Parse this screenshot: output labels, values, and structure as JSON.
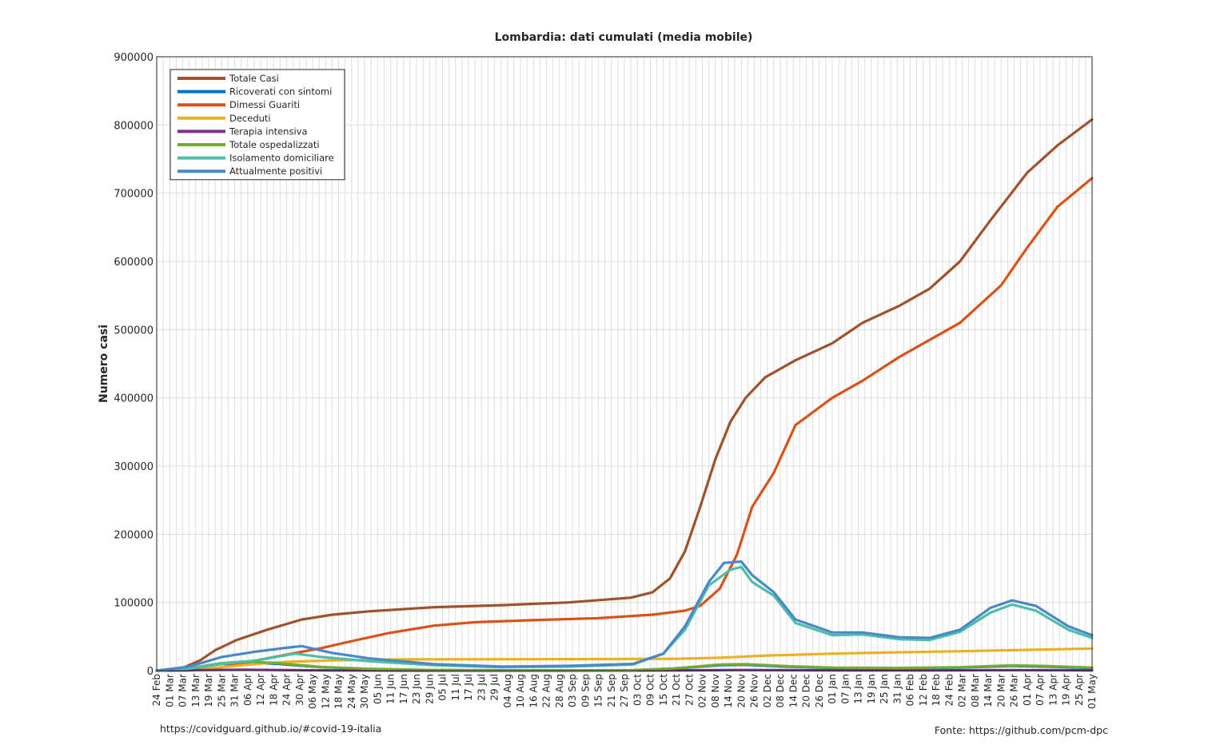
{
  "footer": {
    "left": "https://covidguard.github.io/#covid-19-italia",
    "right": "Fonte: https://github.com/pcm-dpc"
  },
  "chart_data": {
    "type": "line",
    "title": "Lombardia: dati cumulati (media mobile)",
    "xlabel": "",
    "ylabel": "Numero casi",
    "ylim": [
      0,
      900000
    ],
    "yticks": [
      "0",
      "100000",
      "200000",
      "300000",
      "400000",
      "500000",
      "600000",
      "700000",
      "800000",
      "900000"
    ],
    "x_range": [
      "2020-02-24",
      "2021-05-01"
    ],
    "x_tick_step_days": 3,
    "x_tick_label_step_days": 6,
    "x_tick_format": "DD Mon",
    "grid": true,
    "legend_position": "top-left",
    "series": [
      {
        "name": "Totale Casi",
        "color": "#a0522d",
        "points": [
          [
            "2020-02-24",
            0
          ],
          [
            "2020-03-07",
            4000
          ],
          [
            "2020-03-15",
            15000
          ],
          [
            "2020-03-22",
            30000
          ],
          [
            "2020-04-01",
            45000
          ],
          [
            "2020-04-15",
            60000
          ],
          [
            "2020-05-01",
            75000
          ],
          [
            "2020-05-15",
            82000
          ],
          [
            "2020-06-01",
            87000
          ],
          [
            "2020-07-01",
            93000
          ],
          [
            "2020-08-01",
            96000
          ],
          [
            "2020-09-01",
            100000
          ],
          [
            "2020-09-30",
            107000
          ],
          [
            "2020-10-10",
            115000
          ],
          [
            "2020-10-18",
            135000
          ],
          [
            "2020-10-25",
            175000
          ],
          [
            "2020-11-01",
            240000
          ],
          [
            "2020-11-08",
            310000
          ],
          [
            "2020-11-15",
            365000
          ],
          [
            "2020-11-22",
            400000
          ],
          [
            "2020-12-01",
            430000
          ],
          [
            "2020-12-15",
            455000
          ],
          [
            "2021-01-01",
            480000
          ],
          [
            "2021-01-15",
            510000
          ],
          [
            "2021-02-01",
            535000
          ],
          [
            "2021-02-15",
            560000
          ],
          [
            "2021-03-01",
            600000
          ],
          [
            "2021-03-15",
            660000
          ],
          [
            "2021-04-01",
            730000
          ],
          [
            "2021-04-15",
            770000
          ],
          [
            "2021-05-01",
            808000
          ]
        ]
      },
      {
        "name": "Ricoverati con sintomi",
        "color": "#0072bd",
        "points": [
          [
            "2020-02-24",
            0
          ],
          [
            "2020-03-10",
            3000
          ],
          [
            "2020-03-25",
            10000
          ],
          [
            "2020-04-05",
            12000
          ],
          [
            "2020-04-20",
            10000
          ],
          [
            "2020-05-10",
            5000
          ],
          [
            "2020-06-01",
            2500
          ],
          [
            "2020-07-01",
            800
          ],
          [
            "2020-08-20",
            300
          ],
          [
            "2020-10-01",
            600
          ],
          [
            "2020-10-20",
            3000
          ],
          [
            "2020-11-10",
            8000
          ],
          [
            "2020-11-22",
            8500
          ],
          [
            "2020-12-10",
            6000
          ],
          [
            "2021-01-01",
            4000
          ],
          [
            "2021-02-01",
            3500
          ],
          [
            "2021-03-01",
            4500
          ],
          [
            "2021-03-25",
            7000
          ],
          [
            "2021-04-10",
            6000
          ],
          [
            "2021-05-01",
            4000
          ]
        ]
      },
      {
        "name": "Dimessi Guariti",
        "color": "#d95319",
        "points": [
          [
            "2020-02-24",
            0
          ],
          [
            "2020-03-10",
            500
          ],
          [
            "2020-03-25",
            5000
          ],
          [
            "2020-04-10",
            15000
          ],
          [
            "2020-04-25",
            24000
          ],
          [
            "2020-05-10",
            33000
          ],
          [
            "2020-05-25",
            44000
          ],
          [
            "2020-06-10",
            55000
          ],
          [
            "2020-07-01",
            66000
          ],
          [
            "2020-07-20",
            71000
          ],
          [
            "2020-08-15",
            74000
          ],
          [
            "2020-09-15",
            77000
          ],
          [
            "2020-10-10",
            82000
          ],
          [
            "2020-10-25",
            88000
          ],
          [
            "2020-11-01",
            95000
          ],
          [
            "2020-11-10",
            120000
          ],
          [
            "2020-11-18",
            170000
          ],
          [
            "2020-11-25",
            240000
          ],
          [
            "2020-12-05",
            290000
          ],
          [
            "2020-12-15",
            360000
          ],
          [
            "2021-01-01",
            400000
          ],
          [
            "2021-01-15",
            425000
          ],
          [
            "2021-02-01",
            460000
          ],
          [
            "2021-03-01",
            510000
          ],
          [
            "2021-03-20",
            565000
          ],
          [
            "2021-04-01",
            620000
          ],
          [
            "2021-04-15",
            680000
          ],
          [
            "2021-05-01",
            722000
          ]
        ]
      },
      {
        "name": "Deceduti",
        "color": "#edb120",
        "points": [
          [
            "2020-02-24",
            0
          ],
          [
            "2020-03-10",
            800
          ],
          [
            "2020-03-25",
            5000
          ],
          [
            "2020-04-10",
            10000
          ],
          [
            "2020-04-25",
            13000
          ],
          [
            "2020-05-15",
            15000
          ],
          [
            "2020-06-15",
            16500
          ],
          [
            "2020-09-01",
            16900
          ],
          [
            "2020-10-20",
            17300
          ],
          [
            "2020-11-10",
            19000
          ],
          [
            "2020-12-01",
            22000
          ],
          [
            "2021-01-01",
            25000
          ],
          [
            "2021-02-01",
            27000
          ],
          [
            "2021-03-01",
            28500
          ],
          [
            "2021-04-01",
            30500
          ],
          [
            "2021-05-01",
            32500
          ]
        ]
      },
      {
        "name": "Terapia intensiva",
        "color": "#7e2f8e",
        "points": [
          [
            "2020-02-24",
            0
          ],
          [
            "2020-03-15",
            900
          ],
          [
            "2020-04-03",
            1350
          ],
          [
            "2020-04-20",
            900
          ],
          [
            "2020-05-15",
            300
          ],
          [
            "2020-06-15",
            80
          ],
          [
            "2020-09-01",
            30
          ],
          [
            "2020-10-20",
            300
          ],
          [
            "2020-11-18",
            900
          ],
          [
            "2020-12-15",
            700
          ],
          [
            "2021-01-15",
            400
          ],
          [
            "2021-02-15",
            350
          ],
          [
            "2021-03-20",
            850
          ],
          [
            "2021-04-15",
            750
          ],
          [
            "2021-05-01",
            500
          ]
        ]
      },
      {
        "name": "Totale ospedalizzati",
        "color": "#77ac30",
        "points": [
          [
            "2020-02-24",
            0
          ],
          [
            "2020-03-10",
            3500
          ],
          [
            "2020-03-25",
            11000
          ],
          [
            "2020-04-05",
            13500
          ],
          [
            "2020-04-20",
            11000
          ],
          [
            "2020-05-10",
            5500
          ],
          [
            "2020-06-01",
            2700
          ],
          [
            "2020-07-01",
            900
          ],
          [
            "2020-08-20",
            350
          ],
          [
            "2020-10-01",
            650
          ],
          [
            "2020-10-20",
            3300
          ],
          [
            "2020-11-10",
            9000
          ],
          [
            "2020-11-22",
            9500
          ],
          [
            "2020-12-10",
            6800
          ],
          [
            "2021-01-01",
            4500
          ],
          [
            "2021-02-01",
            4000
          ],
          [
            "2021-03-01",
            5000
          ],
          [
            "2021-03-25",
            7800
          ],
          [
            "2021-04-10",
            6800
          ],
          [
            "2021-05-01",
            4500
          ]
        ]
      },
      {
        "name": "Isolamento domiciliare",
        "color": "#4dbeaa",
        "points": [
          [
            "2020-02-24",
            0
          ],
          [
            "2020-03-10",
            3000
          ],
          [
            "2020-03-25",
            10000
          ],
          [
            "2020-04-10",
            15000
          ],
          [
            "2020-04-28",
            25000
          ],
          [
            "2020-05-10",
            20000
          ],
          [
            "2020-06-01",
            14000
          ],
          [
            "2020-07-01",
            8000
          ],
          [
            "2020-08-01",
            5000
          ],
          [
            "2020-09-01",
            6000
          ],
          [
            "2020-10-01",
            9000
          ],
          [
            "2020-10-15",
            25000
          ],
          [
            "2020-10-25",
            60000
          ],
          [
            "2020-11-05",
            125000
          ],
          [
            "2020-11-15",
            148000
          ],
          [
            "2020-11-20",
            152000
          ],
          [
            "2020-11-25",
            130000
          ],
          [
            "2020-12-05",
            110000
          ],
          [
            "2020-12-15",
            70000
          ],
          [
            "2021-01-01",
            52000
          ],
          [
            "2021-01-15",
            53000
          ],
          [
            "2021-02-01",
            46000
          ],
          [
            "2021-02-15",
            45000
          ],
          [
            "2021-03-01",
            57000
          ],
          [
            "2021-03-15",
            85000
          ],
          [
            "2021-03-25",
            97000
          ],
          [
            "2021-04-05",
            88000
          ],
          [
            "2021-04-20",
            60000
          ],
          [
            "2021-05-01",
            48000
          ]
        ]
      },
      {
        "name": "Attualmente positivi",
        "color": "#4a89c8",
        "points": [
          [
            "2020-02-24",
            0
          ],
          [
            "2020-03-10",
            6000
          ],
          [
            "2020-03-25",
            20000
          ],
          [
            "2020-04-10",
            28000
          ],
          [
            "2020-04-25",
            34000
          ],
          [
            "2020-05-01",
            36000
          ],
          [
            "2020-05-15",
            26000
          ],
          [
            "2020-06-01",
            18000
          ],
          [
            "2020-07-01",
            9500
          ],
          [
            "2020-08-01",
            6000
          ],
          [
            "2020-09-01",
            7000
          ],
          [
            "2020-10-01",
            10000
          ],
          [
            "2020-10-15",
            25000
          ],
          [
            "2020-10-25",
            65000
          ],
          [
            "2020-11-05",
            130000
          ],
          [
            "2020-11-12",
            158000
          ],
          [
            "2020-11-20",
            160000
          ],
          [
            "2020-11-25",
            140000
          ],
          [
            "2020-12-05",
            115000
          ],
          [
            "2020-12-15",
            75000
          ],
          [
            "2021-01-01",
            56000
          ],
          [
            "2021-01-15",
            56000
          ],
          [
            "2021-02-01",
            49000
          ],
          [
            "2021-02-15",
            48000
          ],
          [
            "2021-03-01",
            60000
          ],
          [
            "2021-03-15",
            92000
          ],
          [
            "2021-03-25",
            103000
          ],
          [
            "2021-04-05",
            95000
          ],
          [
            "2021-04-20",
            65000
          ],
          [
            "2021-05-01",
            52000
          ]
        ]
      }
    ]
  }
}
